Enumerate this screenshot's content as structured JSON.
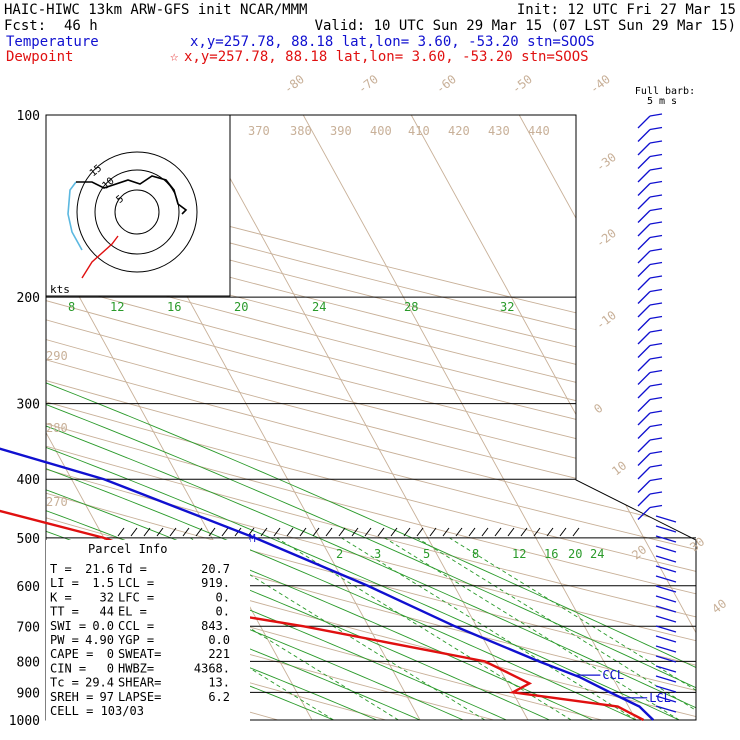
{
  "header": {
    "model": "HAIC-HIWC 13km ARW-GFS init   NCAR/MMM",
    "init": "Init: 12 UTC Fri 27 Mar 15",
    "fcst_label": "Fcst:",
    "fcst_value": "46 h",
    "valid": "Valid: 10 UTC Sun 29 Mar 15 (07 LST Sun 29 Mar 15)",
    "temp_label": "Temperature",
    "temp_loc": "x,y=257.78, 88.18   lat,lon=  3.60, -53.20  stn=SOOS",
    "dew_label": "Dewpoint",
    "dew_loc": "x,y=257.78, 88.18   lat,lon=  3.60, -53.20  stn=SOOS",
    "barb_label1": "Full barb:",
    "barb_label2": "5 m s"
  },
  "colors": {
    "temperature": "#1010d0",
    "dewpoint": "#e01010",
    "mixing_ratio": "#2a9a2a",
    "theta": "#c8b098",
    "moist": "#2a9a2a"
  },
  "chart_data": {
    "type": "line",
    "title": "HAIC-HIWC 13km ARW-GFS init   NCAR/MMM",
    "pressure_levels": [
      "100",
      "200",
      "300",
      "400",
      "500",
      "600",
      "700",
      "800",
      "900",
      "1000"
    ],
    "isotherm_labels": [
      "-80",
      "-70",
      "-60",
      "-50",
      "-40",
      "-30",
      "-20",
      "-10",
      "0",
      "10",
      "20",
      "30",
      "40"
    ],
    "theta_labels": [
      "370",
      "380",
      "390",
      "400",
      "410",
      "420",
      "430",
      "440",
      "290",
      "280",
      "270"
    ],
    "mixing_upper_labels": [
      "8",
      "12",
      "16",
      "20",
      "24",
      "28",
      "32"
    ],
    "mixing_lower_labels": [
      "2",
      "3",
      "5",
      "8",
      "12",
      "16",
      "20",
      "24"
    ],
    "series": [
      {
        "name": "Temperature",
        "color": "#1010d0",
        "points": [
          [
            100,
            -82
          ],
          [
            150,
            -68
          ],
          [
            200,
            -56
          ],
          [
            300,
            -37
          ],
          [
            400,
            -17
          ],
          [
            500,
            -6
          ],
          [
            600,
            2
          ],
          [
            700,
            8
          ],
          [
            800,
            14
          ],
          [
            850,
            17
          ],
          [
            900,
            19
          ],
          [
            950,
            21
          ],
          [
            1000,
            21.6
          ]
        ]
      },
      {
        "name": "Dewpoint",
        "color": "#e01010",
        "points": [
          [
            100,
            -100
          ],
          [
            150,
            -98
          ],
          [
            200,
            -96
          ],
          [
            260,
            -64
          ],
          [
            300,
            -66
          ],
          [
            350,
            -47
          ],
          [
            400,
            -38
          ],
          [
            500,
            -20
          ],
          [
            600,
            -10
          ],
          [
            650,
            -16
          ],
          [
            700,
            -6
          ],
          [
            800,
            9
          ],
          [
            870,
            12
          ],
          [
            900,
            10
          ],
          [
            950,
            19
          ],
          [
            1000,
            20.7
          ]
        ]
      }
    ],
    "markers": [
      {
        "label": "M",
        "p": 500
      },
      {
        "label": "CCL",
        "p": 843
      },
      {
        "label": "LCL",
        "p": 919
      }
    ],
    "hodograph": {
      "unit": "kts",
      "rings": [
        "5",
        "10",
        "15"
      ]
    }
  },
  "parcel": {
    "title": "Parcel Info",
    "rows": [
      [
        "T  =",
        "21.6",
        "Td =",
        "20.7"
      ],
      [
        "LI =",
        "1.5",
        "LCL =",
        "919."
      ],
      [
        "K  =",
        "32",
        "LFC =",
        "0."
      ],
      [
        "TT =",
        "44",
        "EL  =",
        "0."
      ],
      [
        "SWI =",
        "0.0",
        "CCL =",
        "843."
      ],
      [
        "PW =",
        "4.90",
        "YGP =",
        "0.0"
      ],
      [
        "CAPE =",
        "0",
        "SWEAT=",
        "221"
      ],
      [
        "CIN  =",
        "0",
        "HWBZ=",
        "4368."
      ],
      [
        "Tc =",
        "29.4",
        "SHEAR=",
        "13."
      ],
      [
        "SREH =",
        "97",
        "LAPSE=",
        "6.2"
      ]
    ],
    "cell": "CELL = 103/03"
  }
}
